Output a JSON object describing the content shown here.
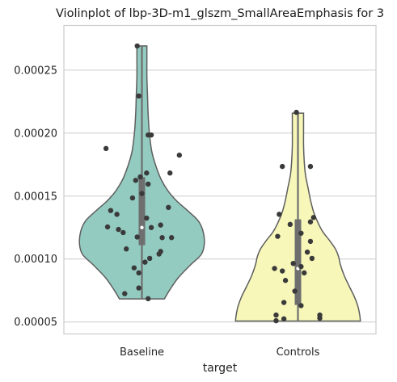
{
  "chart_data": {
    "type": "violin",
    "title": "Violinplot of lbp-3D-m1_glszm_SmallAreaEmphasis for 3",
    "xlabel": "target",
    "ylabel": "",
    "categories": [
      "Baseline",
      "Controls"
    ],
    "ylim": [
      4.05e-05,
      0.0002855
    ],
    "yticks": [
      5e-05,
      0.0001,
      0.00015,
      0.0002,
      0.00025
    ],
    "ytick_labels": [
      "0.00005",
      "0.00010",
      "0.00015",
      "0.00020",
      "0.00025"
    ],
    "grid": "horizontal",
    "colors": {
      "Baseline": "#93cbc1",
      "Controls": "#f7f7ba",
      "outline": "#5e5e5e",
      "points": "#3a3a3a",
      "box": "#6e6e6e",
      "grid": "#d0d0d0",
      "frame": "#cccccc"
    },
    "series": [
      {
        "name": "Baseline",
        "density": [
          [
            6.83e-05,
            0.36
          ],
          [
            7.5e-05,
            0.44
          ],
          [
            8.5e-05,
            0.58
          ],
          [
            9.54e-05,
            0.78
          ],
          [
            0.0001036,
            0.95
          ],
          [
            0.000112,
            1.0
          ],
          [
            0.000122,
            0.98
          ],
          [
            0.0001305,
            0.9
          ],
          [
            0.000139,
            0.72
          ],
          [
            0.000146,
            0.56
          ],
          [
            0.000154,
            0.42
          ],
          [
            0.000163,
            0.31
          ],
          [
            0.000173,
            0.23
          ],
          [
            0.000185,
            0.16
          ],
          [
            0.0002,
            0.12
          ],
          [
            0.000215,
            0.1
          ],
          [
            0.00023,
            0.09
          ],
          [
            0.000245,
            0.08
          ],
          [
            0.00026,
            0.08
          ],
          [
            0.0002692,
            0.08
          ]
        ],
        "box": {
          "whisker": [
            6.83e-05,
            0.0002692
          ],
          "q1": 0.000111,
          "q3": 0.000165,
          "median": 0.000125
        },
        "points": [
          [
            0.0002692,
            -0.03
          ],
          [
            0.0002295,
            -0.02
          ],
          [
            0.0001985,
            0.04
          ],
          [
            0.0001985,
            0.06
          ],
          [
            0.0001878,
            -0.23
          ],
          [
            0.0001825,
            0.24
          ],
          [
            0.0001683,
            0.03
          ],
          [
            0.0001683,
            0.18
          ],
          [
            0.0001652,
            -0.01
          ],
          [
            0.0001625,
            -0.04
          ],
          [
            0.0001595,
            0.04
          ],
          [
            0.000152,
            0.0
          ],
          [
            0.0001485,
            -0.06
          ],
          [
            0.000141,
            0.17
          ],
          [
            0.0001385,
            -0.2
          ],
          [
            0.0001355,
            -0.16
          ],
          [
            0.0001325,
            0.03
          ],
          [
            0.000127,
            0.12
          ],
          [
            0.0001255,
            -0.22
          ],
          [
            0.000125,
            0.06
          ],
          [
            0.0001235,
            -0.15
          ],
          [
            0.000121,
            -0.12
          ],
          [
            0.000117,
            0.13
          ],
          [
            0.000117,
            0.19
          ],
          [
            0.0001175,
            -0.03
          ],
          [
            0.000108,
            -0.1
          ],
          [
            0.000106,
            0.12
          ],
          [
            0.000104,
            0.11
          ],
          [
            0.0001005,
            0.05
          ],
          [
            9.75e-05,
            0.02
          ],
          [
            9.3e-05,
            -0.05
          ],
          [
            8.9e-05,
            -0.02
          ],
          [
            7.7e-05,
            -0.02
          ],
          [
            7.25e-05,
            -0.11
          ],
          [
            6.85e-05,
            0.04
          ]
        ]
      },
      {
        "name": "Controls",
        "density": [
          [
            5.08e-05,
            1.0
          ],
          [
            5.55e-05,
            0.99
          ],
          [
            6.25e-05,
            0.96
          ],
          [
            7.05e-05,
            0.9
          ],
          [
            7.85e-05,
            0.82
          ],
          [
            8.7e-05,
            0.74
          ],
          [
            9.55e-05,
            0.68
          ],
          [
            0.000102,
            0.65
          ],
          [
            0.000108,
            0.6
          ],
          [
            0.0001145,
            0.51
          ],
          [
            0.0001215,
            0.4
          ],
          [
            0.000129,
            0.32
          ],
          [
            0.0001375,
            0.25
          ],
          [
            0.000147,
            0.2
          ],
          [
            0.000157,
            0.16
          ],
          [
            0.000167,
            0.12
          ],
          [
            0.000178,
            0.1
          ],
          [
            0.00019,
            0.09
          ],
          [
            0.000203,
            0.09
          ],
          [
            0.0002158,
            0.09
          ]
        ],
        "box": {
          "whisker": [
            5.08e-05,
            0.0002158
          ],
          "q1": 6.35e-05,
          "q3": 0.0001315,
          "median": 9.25e-05
        },
        "points": [
          [
            0.0002165,
            -0.01
          ],
          [
            0.0001735,
            -0.1
          ],
          [
            0.0001735,
            0.08
          ],
          [
            0.0001355,
            -0.12
          ],
          [
            0.000133,
            0.1
          ],
          [
            0.0001295,
            0.08
          ],
          [
            0.0001275,
            -0.05
          ],
          [
            0.0001205,
            0.02
          ],
          [
            0.000118,
            -0.13
          ],
          [
            0.000114,
            0.08
          ],
          [
            0.0001055,
            0.06
          ],
          [
            0.0001005,
            0.09
          ],
          [
            9.65e-05,
            -0.03
          ],
          [
            9.4e-05,
            0.02
          ],
          [
            9.25e-05,
            -0.15
          ],
          [
            9.05e-05,
            -0.1
          ],
          [
            8.9e-05,
            0.04
          ],
          [
            8.3e-05,
            -0.08
          ],
          [
            7.45e-05,
            -0.02
          ],
          [
            6.55e-05,
            -0.09
          ],
          [
            6.3e-05,
            0.02
          ],
          [
            5.55e-05,
            -0.14
          ],
          [
            5.55e-05,
            0.14
          ],
          [
            5.3e-05,
            0.14
          ],
          [
            5.25e-05,
            -0.09
          ],
          [
            5.1e-05,
            -0.14
          ]
        ]
      }
    ]
  }
}
